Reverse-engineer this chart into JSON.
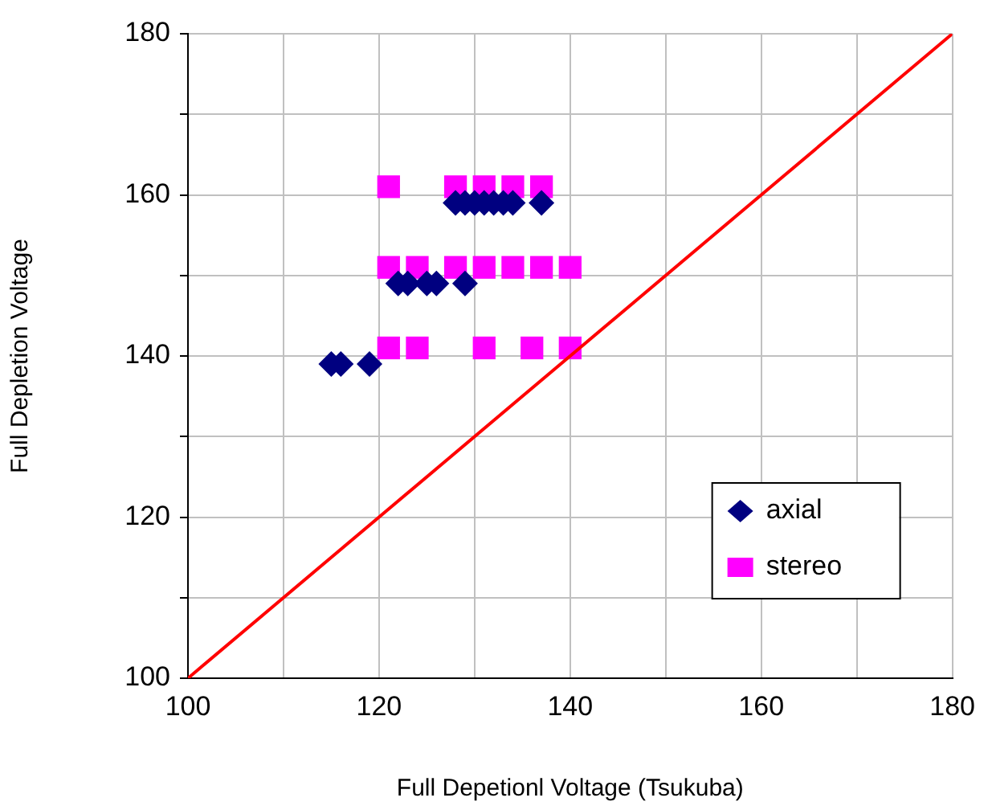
{
  "chart_data": {
    "type": "scatter",
    "xlabel": "Full Depetionl Voltage (Tsukuba)",
    "ylabel": "Full Depletion Voltage",
    "xlim": [
      100,
      180
    ],
    "ylim": [
      100,
      180
    ],
    "xticks": [
      100,
      {
        "value": 110,
        "label": null
      },
      120,
      {
        "value": 130,
        "label": null
      },
      140,
      {
        "value": 150,
        "label": null
      },
      160,
      {
        "value": 170,
        "label": null
      },
      180
    ],
    "yticks": [
      100,
      {
        "value": 110,
        "label": null
      },
      120,
      {
        "value": 130,
        "label": null
      },
      140,
      {
        "value": 150,
        "label": null
      },
      160,
      {
        "value": 170,
        "label": null
      },
      180
    ],
    "grid": true,
    "legend": "bottom right",
    "series": [
      {
        "name": "axial",
        "color": "#000080",
        "marker": "diamond",
        "x": [
          115,
          116,
          119,
          122,
          123,
          125,
          126,
          129,
          128,
          129,
          130,
          131,
          132,
          133,
          134,
          137
        ],
        "values": [
          139,
          139,
          139,
          149,
          149,
          149,
          149,
          149,
          159,
          159,
          159,
          159,
          159,
          159,
          159,
          159
        ]
      },
      {
        "name": "stereo",
        "color": "#ff00ff",
        "marker": "square",
        "x": [
          121,
          124,
          131,
          136,
          140,
          121,
          124,
          128,
          131,
          134,
          137,
          140,
          121,
          128,
          131,
          134,
          137
        ],
        "values": [
          141,
          141,
          141,
          141,
          141,
          151,
          151,
          151,
          151,
          151,
          151,
          151,
          161,
          161,
          161,
          161,
          161
        ]
      },
      {
        "type": "line",
        "color": "#ff0000",
        "marker": "none",
        "x": [
          100,
          180
        ],
        "values": [
          100,
          180
        ]
      }
    ]
  }
}
